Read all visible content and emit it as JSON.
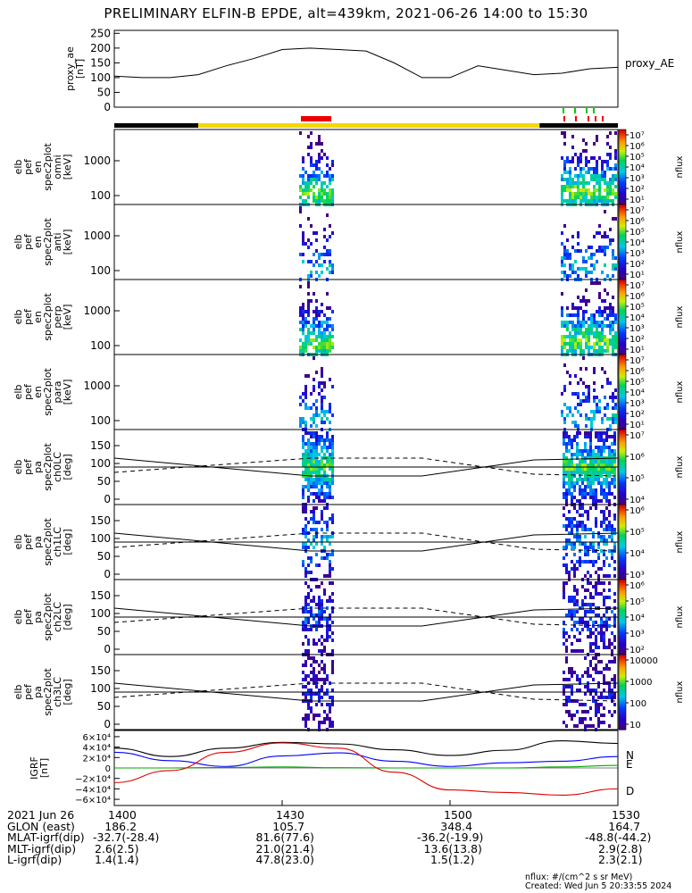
{
  "title": "PRELIMINARY ELFIN-B EPDE, alt=439km, 2021-06-26 14:00 to 15:30",
  "colors": {
    "bar_black": "#000000",
    "bar_yellow": "#f5d800",
    "bar_red": "#ee0000",
    "marker_green": "#00cc00",
    "marker_red": "#ee0000",
    "X": "#000000",
    "Y": "#0000ff",
    "Z": "#00aa00",
    "D": "#dd0000"
  },
  "panels": [
    {
      "id": "proxy",
      "ylabel": [
        "proxy_ae",
        "[nT]"
      ],
      "right_label": "proxy_AE",
      "yticks": [
        "250",
        "200",
        "150",
        "100",
        "50",
        "0"
      ]
    },
    {
      "id": "omni",
      "ylabel": [
        "elb",
        "pef",
        "en",
        "spec2plot",
        "omni",
        "[keV]"
      ],
      "yticks": [
        "1000",
        "100"
      ],
      "cbar_label": "nflux",
      "cbar_ticks": [
        "10⁷",
        "10⁶",
        "10⁵",
        "10⁴",
        "10³",
        "10²",
        "10¹"
      ]
    },
    {
      "id": "anti",
      "ylabel": [
        "elb",
        "pef",
        "en",
        "spec2plot",
        "anti",
        "[keV]"
      ],
      "yticks": [
        "1000",
        "100"
      ],
      "cbar_label": "nflux",
      "cbar_ticks": [
        "10⁷",
        "10⁶",
        "10⁵",
        "10⁴",
        "10³",
        "10²",
        "10¹"
      ]
    },
    {
      "id": "perp",
      "ylabel": [
        "elb",
        "pef",
        "en",
        "spec2plot",
        "perp",
        "[keV]"
      ],
      "yticks": [
        "1000",
        "100"
      ],
      "cbar_label": "nflux",
      "cbar_ticks": [
        "10⁷",
        "10⁶",
        "10⁵",
        "10⁴",
        "10³",
        "10²",
        "10¹"
      ]
    },
    {
      "id": "para",
      "ylabel": [
        "elb",
        "pef",
        "en",
        "spec2plot",
        "para",
        "[keV]"
      ],
      "yticks": [
        "1000",
        "100"
      ],
      "cbar_label": "nflux",
      "cbar_ticks": [
        "10⁷",
        "10⁶",
        "10⁵",
        "10⁴",
        "10³",
        "10²",
        "10¹"
      ]
    },
    {
      "id": "ch0",
      "ylabel": [
        "elb",
        "pef",
        "pa",
        "spec2plot",
        "ch0LC",
        "[deg]"
      ],
      "yticks": [
        "150",
        "100",
        "50",
        "0"
      ],
      "cbar_label": "nflux",
      "cbar_ticks": [
        "10⁷",
        "10⁶",
        "10⁵",
        "10⁴"
      ]
    },
    {
      "id": "ch1",
      "ylabel": [
        "elb",
        "pef",
        "pa",
        "spec2plot",
        "ch1LC",
        "[deg]"
      ],
      "yticks": [
        "150",
        "100",
        "50",
        "0"
      ],
      "cbar_label": "nflux",
      "cbar_ticks": [
        "10⁶",
        "10⁵",
        "10⁴",
        "10³"
      ]
    },
    {
      "id": "ch2",
      "ylabel": [
        "elb",
        "pef",
        "pa",
        "spec2plot",
        "ch2LC",
        "[deg]"
      ],
      "yticks": [
        "150",
        "100",
        "50",
        "0"
      ],
      "cbar_label": "nflux",
      "cbar_ticks": [
        "10⁶",
        "10⁵",
        "10⁴",
        "10³",
        "10²"
      ]
    },
    {
      "id": "ch3",
      "ylabel": [
        "elb",
        "pef",
        "pa",
        "spec2plot",
        "ch3LC",
        "[deg]"
      ],
      "yticks": [
        "150",
        "100",
        "50",
        "0"
      ],
      "cbar_label": "nflux",
      "cbar_ticks": [
        "10000",
        "1000",
        "100",
        "10"
      ]
    },
    {
      "id": "igrf",
      "ylabel": [
        "IGRF",
        "[nT]"
      ],
      "yticks": [
        "6×10⁴",
        "4×10⁴",
        "2×10⁴",
        "0",
        "−2×10⁴",
        "−4×10⁴",
        "−6×10⁴"
      ],
      "legend": [
        "N",
        "E",
        "D"
      ]
    }
  ],
  "chart_data": {
    "type": "line",
    "x_range": [
      "14:00",
      "15:30"
    ],
    "x_ticks": [
      "1400",
      "1430",
      "1500",
      "1530"
    ],
    "proxy_ae": {
      "ylim": [
        0,
        260
      ],
      "x_min": [
        0,
        5,
        10,
        15,
        20,
        25,
        30,
        35,
        40,
        45,
        50,
        55,
        60,
        65,
        70,
        75,
        80,
        85,
        90
      ],
      "values": [
        105,
        100,
        100,
        110,
        140,
        165,
        195,
        200,
        195,
        190,
        150,
        100,
        100,
        140,
        125,
        110,
        115,
        130,
        135
      ]
    },
    "igrf": {
      "ylim": [
        -65000,
        65000
      ],
      "x_min": [
        0,
        10,
        20,
        30,
        40,
        50,
        60,
        70,
        80,
        90
      ],
      "series": [
        {
          "name": "",
          "values": [
            38000,
            22000,
            38000,
            49000,
            46000,
            35000,
            24000,
            34000,
            52000,
            47000
          ]
        },
        {
          "name": "N",
          "values": [
            30000,
            14000,
            3000,
            23000,
            29000,
            13000,
            3000,
            10000,
            13000,
            22000
          ]
        },
        {
          "name": "E",
          "values": [
            0,
            0,
            1000,
            2000,
            500,
            0,
            0,
            0,
            2000,
            5000
          ]
        },
        {
          "name": "D",
          "values": [
            -28000,
            -5000,
            30000,
            48000,
            38000,
            -8000,
            -42000,
            -47000,
            -52000,
            -40000
          ]
        }
      ]
    },
    "orbit_bar": [
      {
        "label": "black",
        "from": 0,
        "to": 15
      },
      {
        "label": "yellow",
        "from": 15,
        "to": 76
      },
      {
        "label": "black",
        "from": 76,
        "to": 90
      }
    ],
    "pa_reference_lines": {
      "solid": [
        105,
        60
      ],
      "dashed": [
        85,
        110
      ]
    }
  },
  "footer": {
    "rows": [
      {
        "label": "2021 Jun 26",
        "values": [
          "1400",
          "1430",
          "1500",
          "1530"
        ]
      },
      {
        "label": "GLON (east)",
        "values": [
          "186.2",
          "105.7",
          "348.4",
          "164.7"
        ]
      },
      {
        "label": "MLAT-igrf(dip)",
        "values": [
          "-32.7(-28.4)",
          "81.6(77.6)",
          "-36.2(-19.9)",
          "-48.8(-44.2)"
        ]
      },
      {
        "label": "MLT-igrf(dip)",
        "values": [
          "2.6(2.5)",
          "21.0(21.4)",
          "13.6(13.8)",
          "2.9(2.8)"
        ]
      },
      {
        "label": "L-igrf(dip)",
        "values": [
          "1.4(1.4)",
          "47.8(23.0)",
          "1.5(1.2)",
          "2.3(2.1)"
        ]
      }
    ],
    "unit_note": "nflux: #/(cm^2 s sr MeV)",
    "created": "Created: Wed Jun  5 20:33:55 2024"
  }
}
